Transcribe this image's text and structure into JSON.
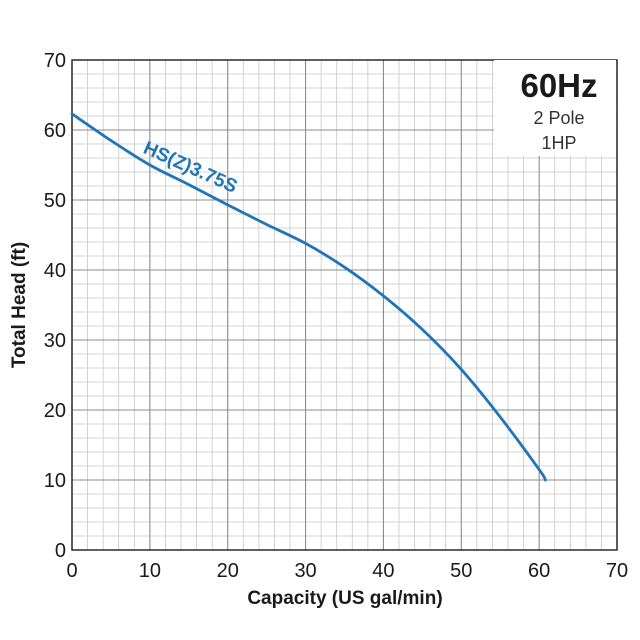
{
  "chart_data": {
    "type": "line",
    "xlabel": "Capacity (US gal/min)",
    "ylabel": "Total Head (ft)",
    "xlim": [
      0,
      70
    ],
    "ylim": [
      0,
      70
    ],
    "xticks": [
      0,
      10,
      20,
      30,
      40,
      50,
      60,
      70
    ],
    "yticks": [
      0,
      10,
      20,
      30,
      40,
      50,
      60,
      70
    ],
    "grid": true,
    "series": [
      {
        "name": "HS(Z)3.75S",
        "color": "#1f75b5",
        "x": [
          0,
          5,
          10,
          15,
          20,
          25,
          30,
          35,
          40,
          45,
          50,
          55,
          60,
          60.8
        ],
        "y": [
          62.3,
          58.5,
          55.0,
          52.2,
          49.3,
          46.5,
          43.8,
          40.4,
          36.3,
          31.5,
          25.8,
          19.0,
          11.5,
          10.0
        ]
      }
    ],
    "info_box": {
      "title": "60Hz",
      "line1": "2 Pole",
      "line2": "1HP"
    }
  }
}
